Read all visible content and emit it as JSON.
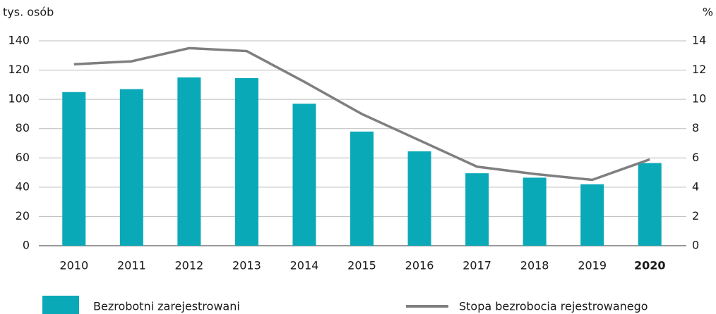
{
  "chart_data": {
    "type": "bar-line",
    "y_label": "tys. osób",
    "y2_label": "%",
    "categories": [
      "2010",
      "2011",
      "2012",
      "2013",
      "2014",
      "2015",
      "2016",
      "2017",
      "2018",
      "2019",
      "2020"
    ],
    "bold_category": 10,
    "series": [
      {
        "name": "Bezrobotni zarejestrowani",
        "color": "#0aa9b8",
        "kind": "bar",
        "values": [
          105,
          107,
          115,
          114.5,
          97,
          78,
          64.5,
          49.5,
          46.5,
          42,
          56.5
        ]
      },
      {
        "name": "Stopa bezrobocia rejestrowanego",
        "color": "#7f7f7f",
        "kind": "line",
        "axis": "y2",
        "values": [
          12.4,
          12.6,
          13.5,
          13.3,
          11.2,
          9.0,
          7.2,
          5.4,
          4.9,
          4.5,
          5.9
        ]
      }
    ],
    "ylim": [
      0,
      140
    ],
    "yticks": [
      0,
      20,
      40,
      60,
      80,
      100,
      120,
      140
    ],
    "y2lim": [
      0,
      14
    ],
    "y2ticks": [
      0,
      2,
      4,
      6,
      8,
      10,
      12,
      14
    ],
    "grid": true
  }
}
